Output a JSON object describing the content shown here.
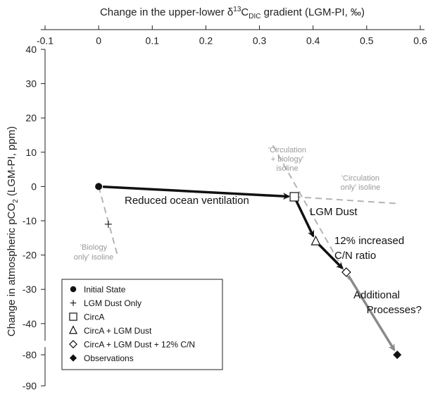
{
  "chart_data": {
    "type": "scatter",
    "xlabel": "Change in the upper-lower δ13CDIC gradient (LGM-PI, ‰)",
    "xlabel_parts": {
      "pre": "Change in the upper-lower δ",
      "sup": "13",
      "mid": "C",
      "sub": "DIC",
      "post": " gradient (LGM-PI, ‰)"
    },
    "ylabel": "Change in atmospheric pCO2 (LGM-PI, ppm)",
    "ylabel_parts": {
      "pre": "Change in atmospheric pCO",
      "sub": "2",
      "post": " (LGM-PI, ppm)"
    },
    "xlim": [
      -0.1,
      0.6
    ],
    "x_ticks": [
      "-0.1",
      "0",
      "0.1",
      "0.2",
      "0.3",
      "0.4",
      "0.5",
      "0.6"
    ],
    "y_ticks": [
      "40",
      "30",
      "20",
      "10",
      "0",
      "-10",
      "-20",
      "-30",
      "-40",
      "-80",
      "-90"
    ],
    "y_axis_break": "between -40 and -80",
    "points": [
      {
        "name": "Initial State",
        "marker": "filled-circle",
        "x": 0.0,
        "y": 0
      },
      {
        "name": "LGM Dust Only",
        "marker": "plus",
        "x": 0.018,
        "y": -11
      },
      {
        "name": "CircA",
        "marker": "open-square",
        "x": 0.365,
        "y": -3
      },
      {
        "name": "CircA + LGM Dust",
        "marker": "open-triangle",
        "x": 0.405,
        "y": -16
      },
      {
        "name": "CircA + LGM Dust + 12% C/N",
        "marker": "open-diamond",
        "x": 0.462,
        "y": -25
      },
      {
        "name": "Observations",
        "marker": "filled-diamond",
        "x": 0.557,
        "y": -80
      }
    ],
    "arrows": [
      {
        "from": "Initial State",
        "to": "CircA",
        "label": "Reduced ocean ventilation",
        "color": "#111111"
      },
      {
        "from": "CircA",
        "to": "CircA + LGM Dust",
        "label": "LGM Dust",
        "color": "#111111"
      },
      {
        "from": "CircA + LGM Dust",
        "to": "CircA + LGM Dust + 12% C/N",
        "label": "12% increased C/N ratio",
        "color": "#111111"
      },
      {
        "from": "CircA + LGM Dust + 12% C/N",
        "to": "Observations",
        "label": "Additional Processes?",
        "color": "#8a8a8a"
      }
    ],
    "isolines": [
      {
        "label": "'Biology only' isoline",
        "from": {
          "x": 0.0,
          "y": 0
        },
        "to": {
          "x": 0.035,
          "y": -20
        }
      },
      {
        "label": "'Circulation + biology' isoline",
        "from": {
          "x": 0.325,
          "y": 12
        },
        "to": {
          "x": 0.47,
          "y": -28
        }
      },
      {
        "label": "'Circulation only' isoline",
        "from": {
          "x": 0.365,
          "y": -3
        },
        "to": {
          "x": 0.56,
          "y": -5
        }
      }
    ],
    "legend": {
      "position": "bottom-left",
      "entries": [
        {
          "marker": "filled-circle",
          "label": "Initial State"
        },
        {
          "marker": "plus",
          "label": "LGM Dust Only"
        },
        {
          "marker": "open-square",
          "label": "CircA"
        },
        {
          "marker": "open-triangle",
          "label": "CircA + LGM Dust"
        },
        {
          "marker": "open-diamond",
          "label": "CircA + LGM Dust + 12% C/N"
        },
        {
          "marker": "filled-diamond",
          "label": "Observations"
        }
      ]
    },
    "annotations": {
      "ventilation": "Reduced ocean ventilation",
      "dust": "LGM Dust",
      "cn_line1": "12% increased",
      "cn_line2": "C/N ratio",
      "additional_line1": "Additional",
      "additional_line2": "Processes?",
      "biology_line1": "'Biology",
      "biology_line2": "only' isoline",
      "circbio_line1": "'Circulation",
      "circbio_line2": "+ biology'",
      "circbio_line3": "isoline",
      "circonly_line1": "'Circulation",
      "circonly_line2": "only' isoline"
    },
    "colors": {
      "primary": "#111111",
      "isoline": "#b4b4b4",
      "isoline_label": "#9a9a9a",
      "final_arrow": "#8a8a8a"
    },
    "grid": false
  }
}
